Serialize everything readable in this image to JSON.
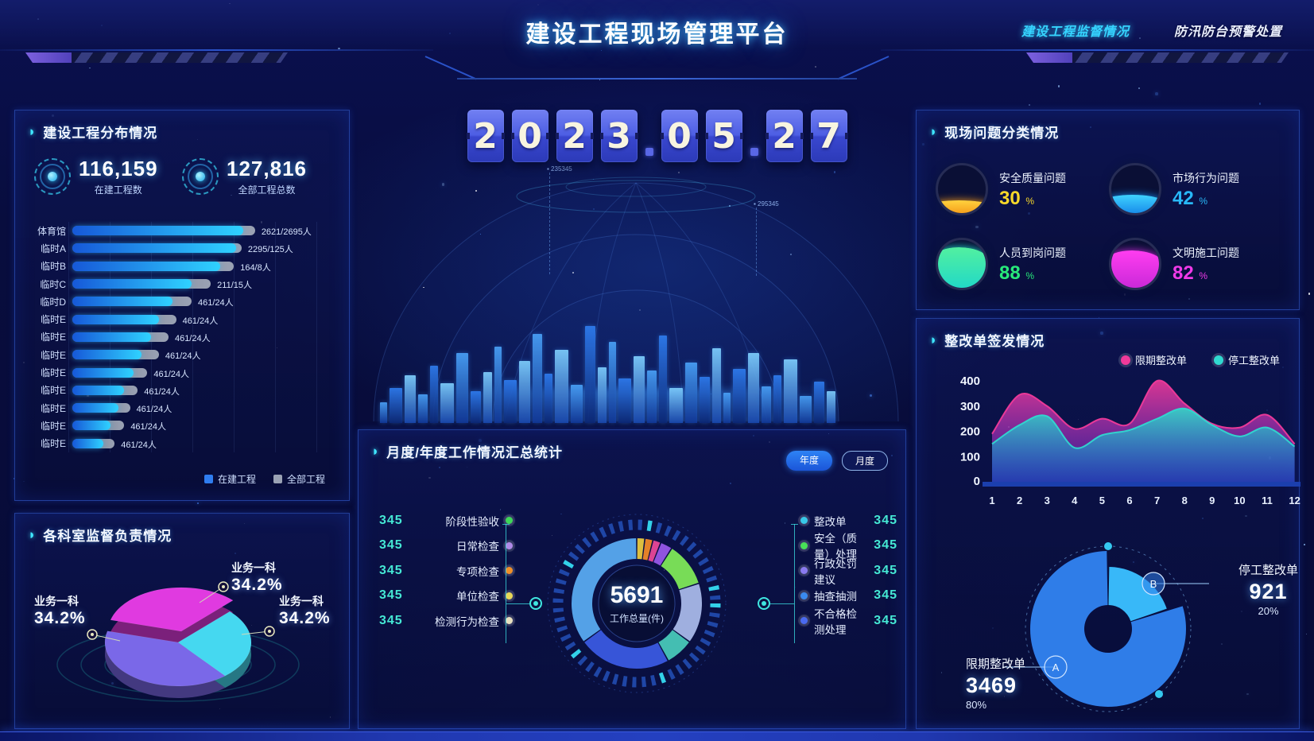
{
  "header": {
    "title": "建设工程现场管理平台",
    "nav": [
      {
        "label": "建设工程监督情况",
        "active": true
      },
      {
        "label": "防汛防台预警处置",
        "active": false
      }
    ]
  },
  "date": {
    "groups": [
      [
        "2",
        "0",
        "2",
        "3"
      ],
      [
        "0",
        "5"
      ],
      [
        "2",
        "7"
      ]
    ]
  },
  "dome": {
    "markers": [
      "235345",
      "295345"
    ]
  },
  "left_top": {
    "title": "建设工程分布情况",
    "stats": [
      {
        "value": "116,159",
        "label": "在建工程数"
      },
      {
        "value": "127,816",
        "label": "全部工程总数"
      }
    ],
    "legend": [
      {
        "label": "在建工程",
        "color": "#2f7df0"
      },
      {
        "label": "全部工程",
        "color": "#9aa2b4"
      }
    ]
  },
  "left_bottom": {
    "title": "各科室监督负责情况",
    "callouts": [
      {
        "label": "业务一科",
        "pct": "34.2%",
        "pos": "top"
      },
      {
        "label": "业务一科",
        "pct": "34.2%",
        "pos": "left"
      },
      {
        "label": "业务一科",
        "pct": "34.2%",
        "pos": "right"
      }
    ]
  },
  "center": {
    "title": "月度/年度工作情况汇总统计",
    "toggles": [
      {
        "label": "年度",
        "active": true
      },
      {
        "label": "月度",
        "active": false
      }
    ],
    "left_items": [
      {
        "value": "345",
        "label": "阶段性验收",
        "color": "#3ed858"
      },
      {
        "value": "345",
        "label": "日常检查",
        "color": "#b08ae8"
      },
      {
        "value": "345",
        "label": "专项检查",
        "color": "#f09028"
      },
      {
        "value": "345",
        "label": "单位检查",
        "color": "#e8d858"
      },
      {
        "value": "345",
        "label": "检测行为检查",
        "color": "#e8e0c0"
      }
    ],
    "right_items": [
      {
        "label": "整改单",
        "value": "345",
        "color": "#38c8e8"
      },
      {
        "label": "安全（质量）处理",
        "value": "345",
        "color": "#48e058"
      },
      {
        "label": "行政处罚建议",
        "value": "345",
        "color": "#8a7af0"
      },
      {
        "label": "抽查抽测",
        "value": "345",
        "color": "#3a8af0"
      },
      {
        "label": "不合格检测处理",
        "value": "345",
        "color": "#4a6af0"
      }
    ]
  },
  "right_top": {
    "title": "现场问题分类情况"
  },
  "right_main": {
    "title": "整改单签发情况"
  },
  "chart_data": [
    {
      "id": "projects_distribution",
      "type": "bar",
      "orientation": "horizontal",
      "title": "建设工程分布情况",
      "categories": [
        "体育馆",
        "临时A",
        "临时B",
        "临时C",
        "临时D",
        "临时E",
        "临时E",
        "临时E",
        "临时E",
        "临时E",
        "临时E",
        "临时E",
        "临时E"
      ],
      "value_labels": [
        "2621/2695人",
        "2295/125人",
        "164/8人",
        "211/15人",
        "461/24人",
        "461/24人",
        "461/24人",
        "461/24人",
        "461/24人",
        "461/24人",
        "461/24人",
        "461/24人",
        "461/24人"
      ],
      "series": [
        {
          "name": "在建工程",
          "color": "#2f7df0",
          "values_pct": [
            89,
            85,
            77,
            62,
            52,
            45,
            41,
            36,
            32,
            27,
            24,
            20,
            16
          ]
        },
        {
          "name": "全部工程",
          "color": "#9aa2b4",
          "values_pct": [
            95,
            88,
            84,
            72,
            62,
            54,
            50,
            45,
            39,
            34,
            30,
            27,
            22
          ]
        }
      ],
      "legend_position": "bottom"
    },
    {
      "id": "department_pie",
      "type": "pie",
      "title": "各科室监督负责情况",
      "slices": [
        {
          "label": "业务一科",
          "value": 34.2,
          "color": "#e03ae0",
          "pos": "top"
        },
        {
          "label": "业务一科",
          "value": 34.2,
          "color": "#45d8f0",
          "pos": "right"
        },
        {
          "label": "业务一科",
          "value": 34.2,
          "color": "#7a68e8",
          "pos": "left"
        }
      ]
    },
    {
      "id": "work_summary_donut",
      "type": "pie",
      "center_value": "5691",
      "center_label": "工作总量(件)",
      "segments": [
        {
          "color": "#e8c840",
          "value": 2
        },
        {
          "color": "#f08828",
          "value": 2
        },
        {
          "color": "#e84898",
          "value": 2
        },
        {
          "color": "#9858e8",
          "value": 3
        },
        {
          "color": "#7ee858",
          "value": 11
        },
        {
          "color": "#a8b8e8",
          "value": 15
        },
        {
          "color": "#48c8b8",
          "value": 7
        },
        {
          "color": "#3a5ae0",
          "value": 23
        },
        {
          "color": "#58aaf0",
          "value": 35
        }
      ]
    },
    {
      "id": "site_issue_gauges",
      "type": "gauge",
      "unit": "%",
      "items": [
        {
          "label": "安全质量问题",
          "value": 30,
          "color1": "#ffd23e",
          "color2": "#f59a18",
          "text_color": "#f8d82a"
        },
        {
          "label": "市场行为问题",
          "value": 42,
          "color1": "#3fd2ff",
          "color2": "#1687e8",
          "text_color": "#28b8f8"
        },
        {
          "label": "人员到岗问题",
          "value": 88,
          "color1": "#52f0a0",
          "color2": "#20d8c8",
          "text_color": "#28e87a"
        },
        {
          "label": "文明施工问题",
          "value": 82,
          "color1": "#ff3df0",
          "color2": "#c828d8",
          "text_color": "#f03ae8"
        }
      ]
    },
    {
      "id": "rectification_issuance",
      "type": "area",
      "x": [
        1,
        2,
        3,
        4,
        5,
        6,
        7,
        8,
        9,
        10,
        11,
        12
      ],
      "ylim": [
        0,
        400
      ],
      "yticks": [
        0,
        100,
        200,
        300,
        400
      ],
      "legend_position": "top-right",
      "series": [
        {
          "name": "限期整改单",
          "color": "#f03a9a",
          "values": [
            190,
            345,
            300,
            210,
            250,
            230,
            400,
            310,
            230,
            215,
            265,
            150
          ]
        },
        {
          "name": "停工整改单",
          "color": "#30d8d0",
          "values": [
            150,
            225,
            260,
            135,
            185,
            205,
            250,
            290,
            225,
            180,
            215,
            140
          ]
        }
      ]
    },
    {
      "id": "rectification_split_donut",
      "type": "pie",
      "slices": [
        {
          "letter": "A",
          "label": "限期整改单",
          "value": "3469",
          "pct": "80%",
          "color": "#2f7de8"
        },
        {
          "letter": "B",
          "label": "停工整改单",
          "value": "921",
          "pct": "20%",
          "color": "#38b8f8"
        }
      ]
    }
  ]
}
